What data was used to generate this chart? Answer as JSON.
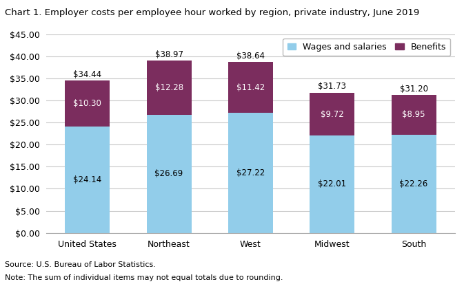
{
  "title": "Chart 1. Employer costs per employee hour worked by region, private industry, June 2019",
  "categories": [
    "United States",
    "Northeast",
    "West",
    "Midwest",
    "South"
  ],
  "wages": [
    24.14,
    26.69,
    27.22,
    22.01,
    22.26
  ],
  "benefits": [
    10.3,
    12.28,
    11.42,
    9.72,
    8.95
  ],
  "totals": [
    34.44,
    38.97,
    38.64,
    31.73,
    31.2
  ],
  "wages_color": "#92CDEA",
  "benefits_color": "#7B2D5E",
  "wages_label": "Wages and salaries",
  "benefits_label": "Benefits",
  "ylim": [
    0,
    45
  ],
  "yticks": [
    0,
    5,
    10,
    15,
    20,
    25,
    30,
    35,
    40,
    45
  ],
  "note_line1": "Note: The sum of individual items may not equal totals due to rounding.",
  "note_line2": "Source: U.S. Bureau of Labor Statistics.",
  "title_fontsize": 9.5,
  "tick_fontsize": 9,
  "label_fontsize": 8.5,
  "note_fontsize": 8,
  "legend_fontsize": 9,
  "bg_color": "#FFFFFF",
  "grid_color": "#CCCCCC",
  "bar_width": 0.55
}
